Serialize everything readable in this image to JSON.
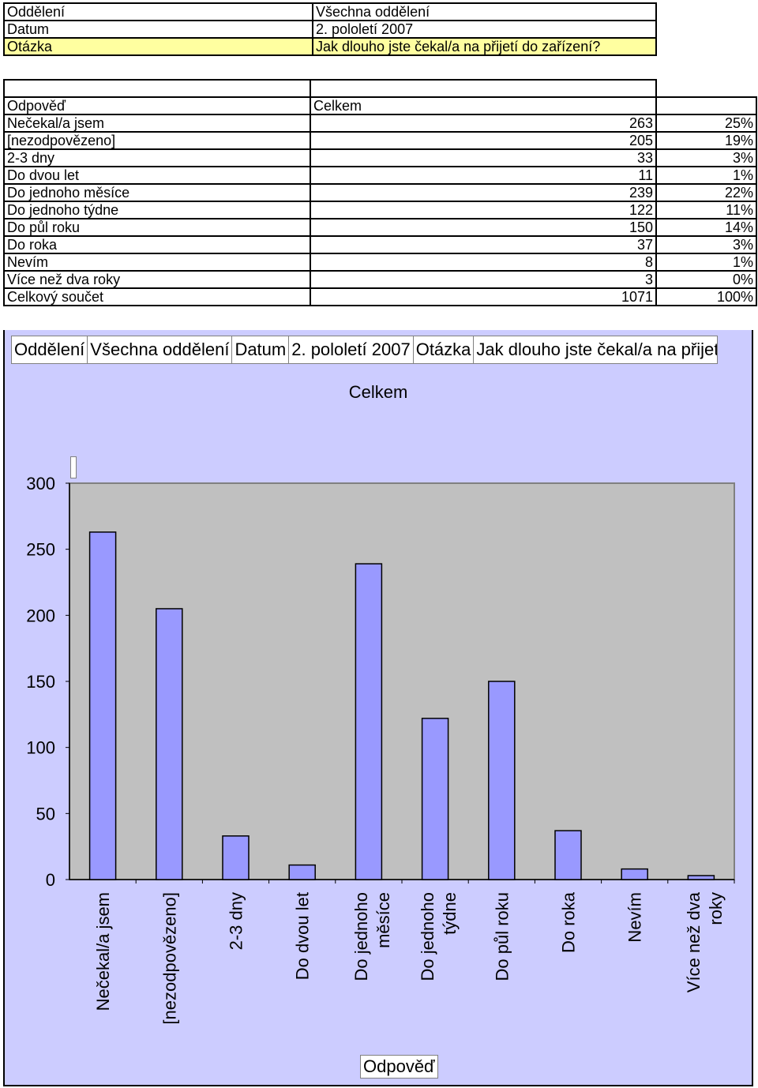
{
  "filters": [
    {
      "key": "Oddělení",
      "value": "Všechna oddělení"
    },
    {
      "key": "Datum",
      "value": "2. pololetí 2007"
    },
    {
      "key": "Otázka",
      "value": "Jak dlouho jste čekal/a na přijetí do zařízení?"
    }
  ],
  "table": {
    "header_col1": "Odpověď",
    "header_col2": "Celkem",
    "rows": [
      {
        "label": " Nečekal/a jsem",
        "count": "263",
        "pct": "25%"
      },
      {
        "label": "[nezodpovězeno]",
        "count": "205",
        "pct": "19%"
      },
      {
        "label": "2-3 dny",
        "count": "33",
        "pct": "3%"
      },
      {
        "label": "Do dvou let",
        "count": "11",
        "pct": "1%"
      },
      {
        "label": "Do jednoho měsíce",
        "count": "239",
        "pct": "22%"
      },
      {
        "label": "Do jednoho týdne",
        "count": "122",
        "pct": "11%"
      },
      {
        "label": "Do půl roku",
        "count": "150",
        "pct": "14%"
      },
      {
        "label": "Do roka",
        "count": "37",
        "pct": "3%"
      },
      {
        "label": "Nevím",
        "count": "8",
        "pct": "1%"
      },
      {
        "label": "Více než dva roky",
        "count": "3",
        "pct": "0%"
      },
      {
        "label": "Celkový součet",
        "count": "1071",
        "pct": "100%"
      }
    ]
  },
  "page_fields": {
    "f1_label": "Oddělení",
    "f1_value": "Všechna oddělení",
    "f2_label": "Datum",
    "f2_value": "2. pololetí 2007",
    "f3_label": "Otázka",
    "f3_value": "Jak dlouho jste čekal/a na přijetí do zařízení?"
  },
  "chart_data": {
    "type": "bar",
    "title": "Celkem",
    "xlabel": "Odpověď",
    "ylabel": "",
    "categories": [
      "Nečekal/a jsem",
      "[nezodpovězeno]",
      "2-3 dny",
      "Do dvou let",
      "Do jednoho měsíce",
      "Do jednoho týdne",
      "Do půl roku",
      "Do roka",
      "Nevím",
      "Více než dva roky"
    ],
    "values": [
      263,
      205,
      33,
      11,
      239,
      122,
      150,
      37,
      8,
      3
    ],
    "ylim": [
      0,
      300
    ],
    "yticks": [
      0,
      50,
      100,
      150,
      200,
      250,
      300
    ],
    "grid": false,
    "colors": {
      "bar": "#9999ff",
      "plot_bg": "#c0c0c0",
      "chart_bg": "#ccccff"
    }
  }
}
